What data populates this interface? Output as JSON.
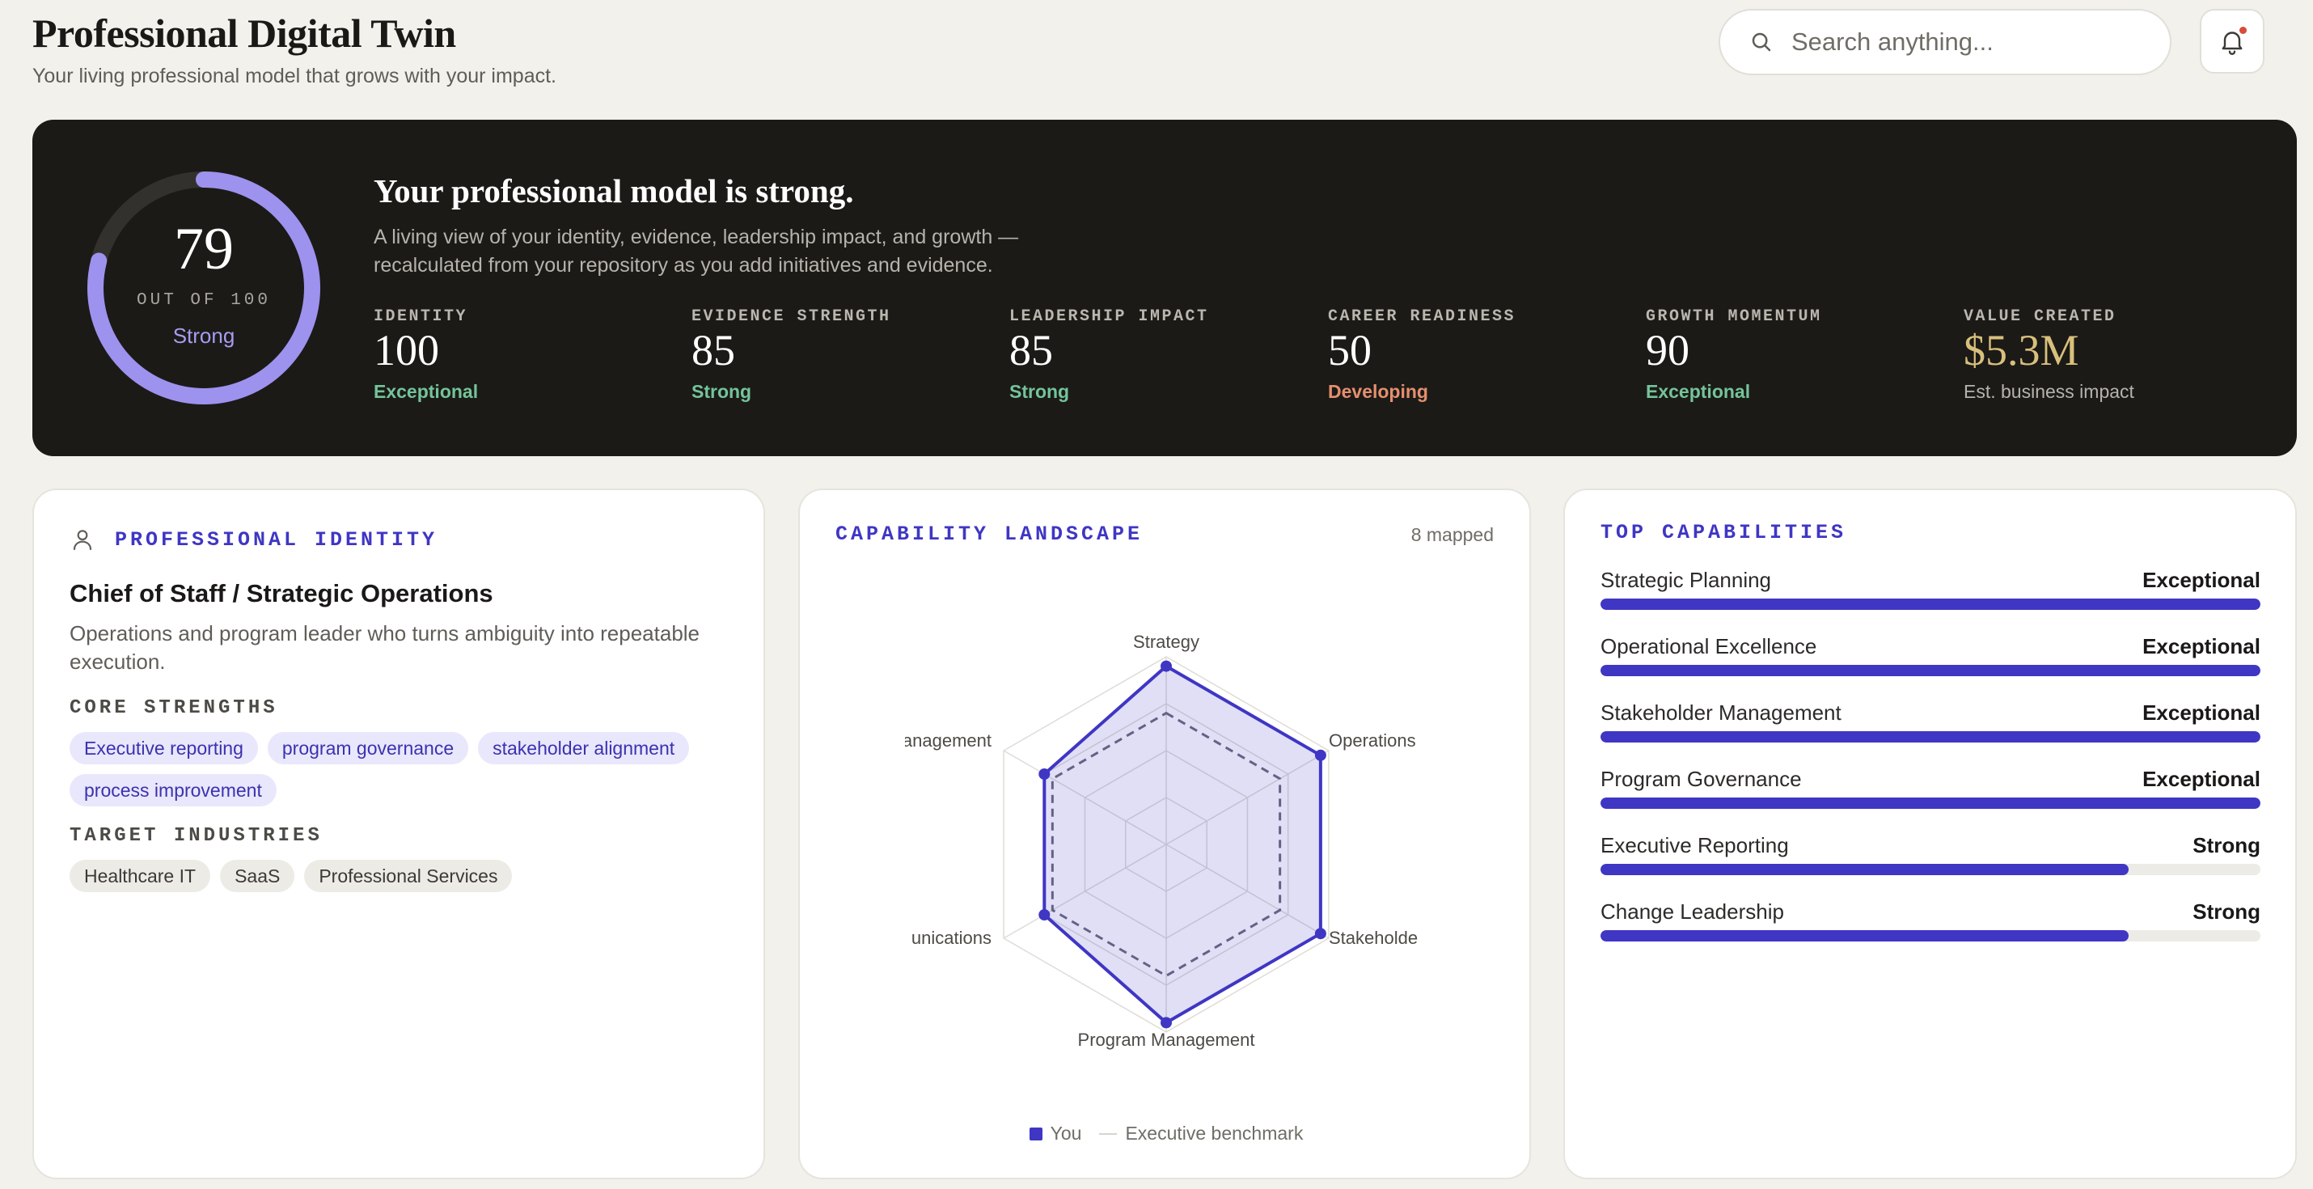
{
  "header": {
    "title": "Professional Digital Twin",
    "subtitle": "Your living professional model that grows with your impact.",
    "search_placeholder": "Search anything...",
    "icons": [
      "search-icon",
      "bell-icon"
    ]
  },
  "hero": {
    "score": "79",
    "score_value": 79,
    "score_max": 100,
    "score_out_of": "OUT OF 100",
    "score_label": "Strong",
    "title": "Your professional model is strong.",
    "description": "A living view of your identity, evidence, leadership impact, and growth — recalculated from your repository as you add initiatives and evidence.",
    "metrics": [
      {
        "label": "IDENTITY",
        "value": "100",
        "status": "Exceptional"
      },
      {
        "label": "EVIDENCE STRENGTH",
        "value": "85",
        "status": "Strong"
      },
      {
        "label": "LEADERSHIP IMPACT",
        "value": "85",
        "status": "Strong"
      },
      {
        "label": "CAREER READINESS",
        "value": "50",
        "status": "Developing"
      },
      {
        "label": "GROWTH MOMENTUM",
        "value": "90",
        "status": "Exceptional"
      },
      {
        "label": "VALUE CREATED",
        "value": "$5.3M",
        "status": "Est. business impact"
      }
    ],
    "colors": {
      "gauge": "#9d92ee",
      "exceptional": "#74c49a",
      "developing": "#e58f6f",
      "value": "#d8c07c"
    }
  },
  "identity": {
    "heading": "PROFESSIONAL IDENTITY",
    "role": "Chief of Staff / Strategic Operations",
    "description": "Operations and program leader who turns ambiguity into repeatable execution.",
    "strengths_heading": "CORE STRENGTHS",
    "strengths": [
      "Executive reporting",
      "program governance",
      "stakeholder alignment",
      "process improvement"
    ],
    "industries_heading": "TARGET INDUSTRIES",
    "industries": [
      "Healthcare IT",
      "SaaS",
      "Professional Services"
    ]
  },
  "capability_landscape": {
    "heading": "CAPABILITY LANDSCAPE",
    "count": "8 mapped",
    "axis_labels": [
      "Strategy",
      "Operations",
      "Stakeholde",
      "Program Management",
      "unications",
      "anagement"
    ],
    "legend": {
      "you": "You",
      "benchmark": "Executive benchmark"
    }
  },
  "chart_data": {
    "type": "radar",
    "categories": [
      "Strategy",
      "Operations",
      "Stakeholder",
      "Program Management",
      "Communications",
      "Management"
    ],
    "series": [
      {
        "name": "You",
        "values": [
          95,
          95,
          95,
          95,
          75,
          75
        ]
      },
      {
        "name": "Executive benchmark",
        "values": [
          70,
          70,
          70,
          70,
          70,
          70
        ]
      }
    ],
    "rlim": [
      0,
      100
    ],
    "grid_rings": 4,
    "color": "#3f36c4"
  },
  "top_capabilities": {
    "heading": "TOP CAPABILITIES",
    "items": [
      {
        "name": "Strategic Planning",
        "level": "Exceptional",
        "fill": 1.0
      },
      {
        "name": "Operational Excellence",
        "level": "Exceptional",
        "fill": 1.0
      },
      {
        "name": "Stakeholder Management",
        "level": "Exceptional",
        "fill": 1.0
      },
      {
        "name": "Program Governance",
        "level": "Exceptional",
        "fill": 1.0
      },
      {
        "name": "Executive Reporting",
        "level": "Strong",
        "fill": 0.8
      },
      {
        "name": "Change Leadership",
        "level": "Strong",
        "fill": 0.8
      }
    ]
  }
}
